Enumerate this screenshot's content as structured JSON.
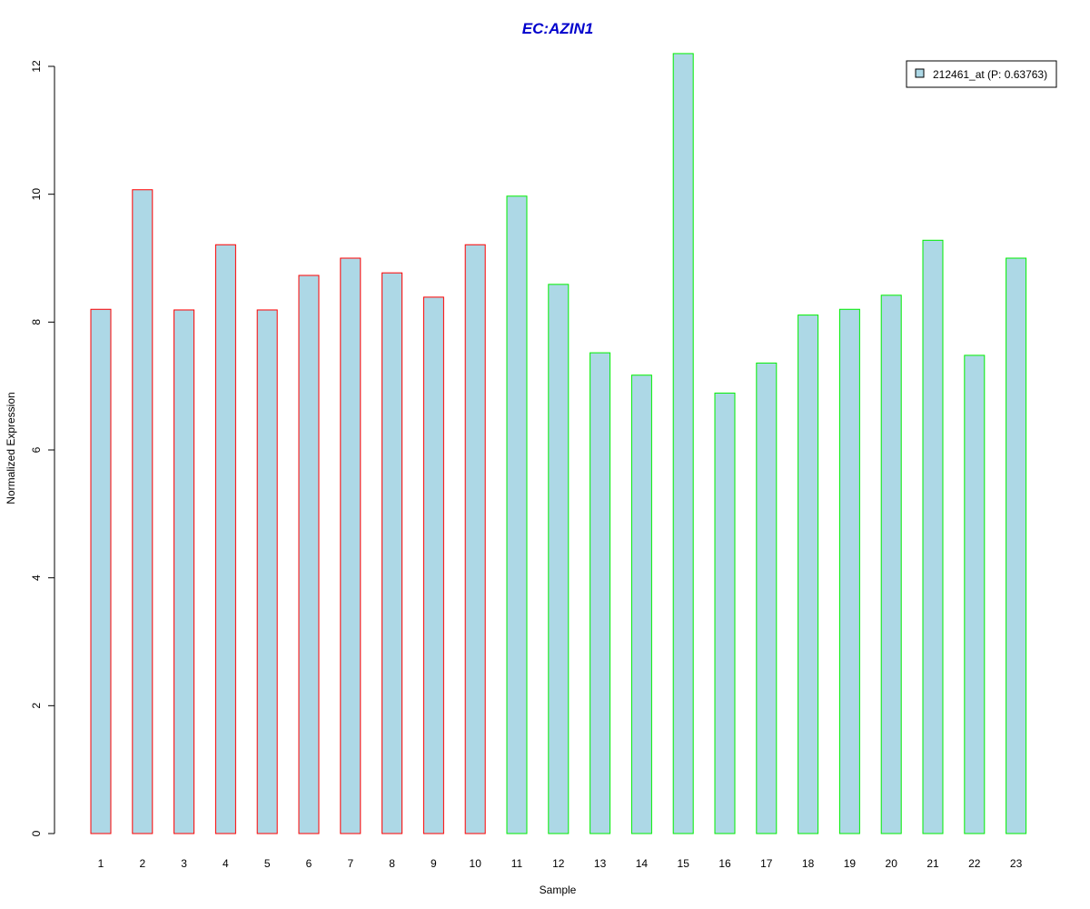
{
  "colors": {
    "title": "#0000cc",
    "bar_fill": "#add8e6",
    "group1_border": "#ff0000",
    "group2_border": "#00ee00",
    "axis": "#000000"
  },
  "chart_data": {
    "type": "bar",
    "title": "EC:AZIN1",
    "xlabel": "Sample",
    "ylabel": "Normalized Expression",
    "ylim": [
      0,
      12
    ],
    "yticks": [
      "0",
      "2",
      "4",
      "6",
      "8",
      "10",
      "12"
    ],
    "grid": false,
    "legend_position": "top-right",
    "categories": [
      "1",
      "2",
      "3",
      "4",
      "5",
      "6",
      "7",
      "8",
      "9",
      "10",
      "11",
      "12",
      "13",
      "14",
      "15",
      "16",
      "17",
      "18",
      "19",
      "20",
      "21",
      "22",
      "23"
    ],
    "series": [
      {
        "name": "212461_at (P: 0.63763)",
        "values": [
          8.2,
          10.07,
          8.19,
          9.21,
          8.19,
          8.73,
          9.0,
          8.77,
          8.39,
          9.21,
          9.97,
          8.59,
          7.52,
          7.17,
          12.2,
          6.89,
          7.36,
          8.11,
          8.2,
          8.42,
          9.28,
          7.48,
          9.0
        ],
        "groups": [
          1,
          1,
          1,
          1,
          1,
          1,
          1,
          1,
          1,
          1,
          2,
          2,
          2,
          2,
          2,
          2,
          2,
          2,
          2,
          2,
          2,
          2,
          2
        ]
      }
    ]
  }
}
